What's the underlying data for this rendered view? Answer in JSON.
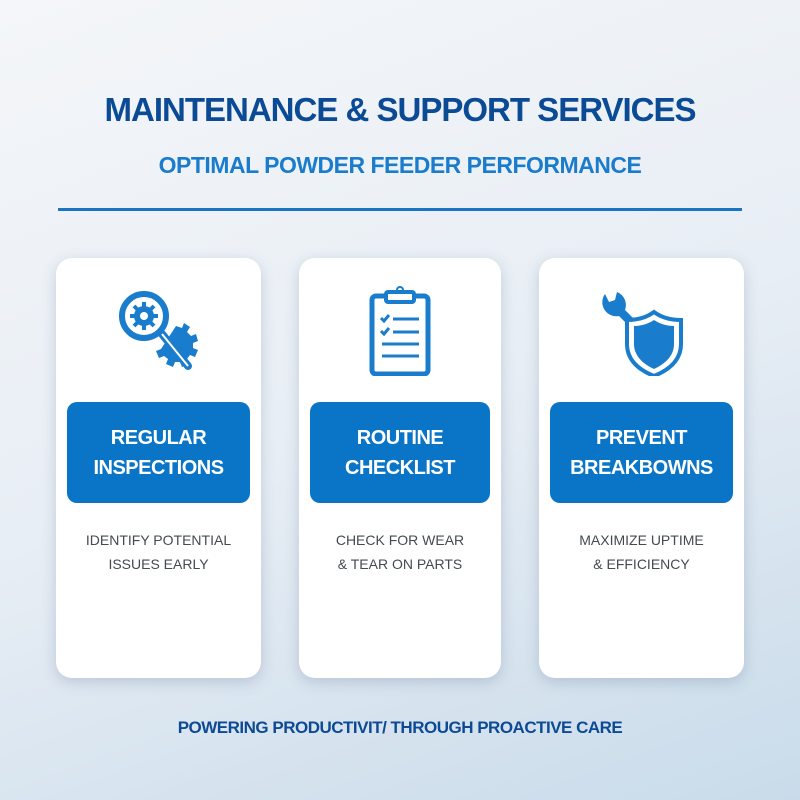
{
  "header": {
    "title": "MAINTENANCE & SUPPORT SERVICES",
    "subtitle": "OPTIMAL POWDER FEEDER PERFORMANCE"
  },
  "cards": [
    {
      "icon": "magnifier-gear-wrench-icon",
      "label_line1": "REGULAR",
      "label_line2": "INSPECTIONS",
      "desc_line1": "IDENTIFY POTENTIAL",
      "desc_line2": "ISSUES EARLY"
    },
    {
      "icon": "clipboard-checklist-icon",
      "label_line1": "ROUTINE",
      "label_line2": "CHECKLIST",
      "desc_line1": "CHECK FOR WEAR",
      "desc_line2": "& TEAR ON PARTS"
    },
    {
      "icon": "wrench-shield-icon",
      "label_line1": "PREVENT",
      "label_line2": "BREAKBOWNS",
      "desc_line1": "MAXIMIZE UPTIME",
      "desc_line2": "& EFFICIENCY"
    }
  ],
  "footer": {
    "tagline": "POWERING PRODUCTIVIT/ THROUGH PROACTIVE CARE"
  },
  "colors": {
    "title": "#0b4a94",
    "subtitle": "#1a7ccc",
    "accent": "#0a74c6",
    "text": "#454a52"
  }
}
